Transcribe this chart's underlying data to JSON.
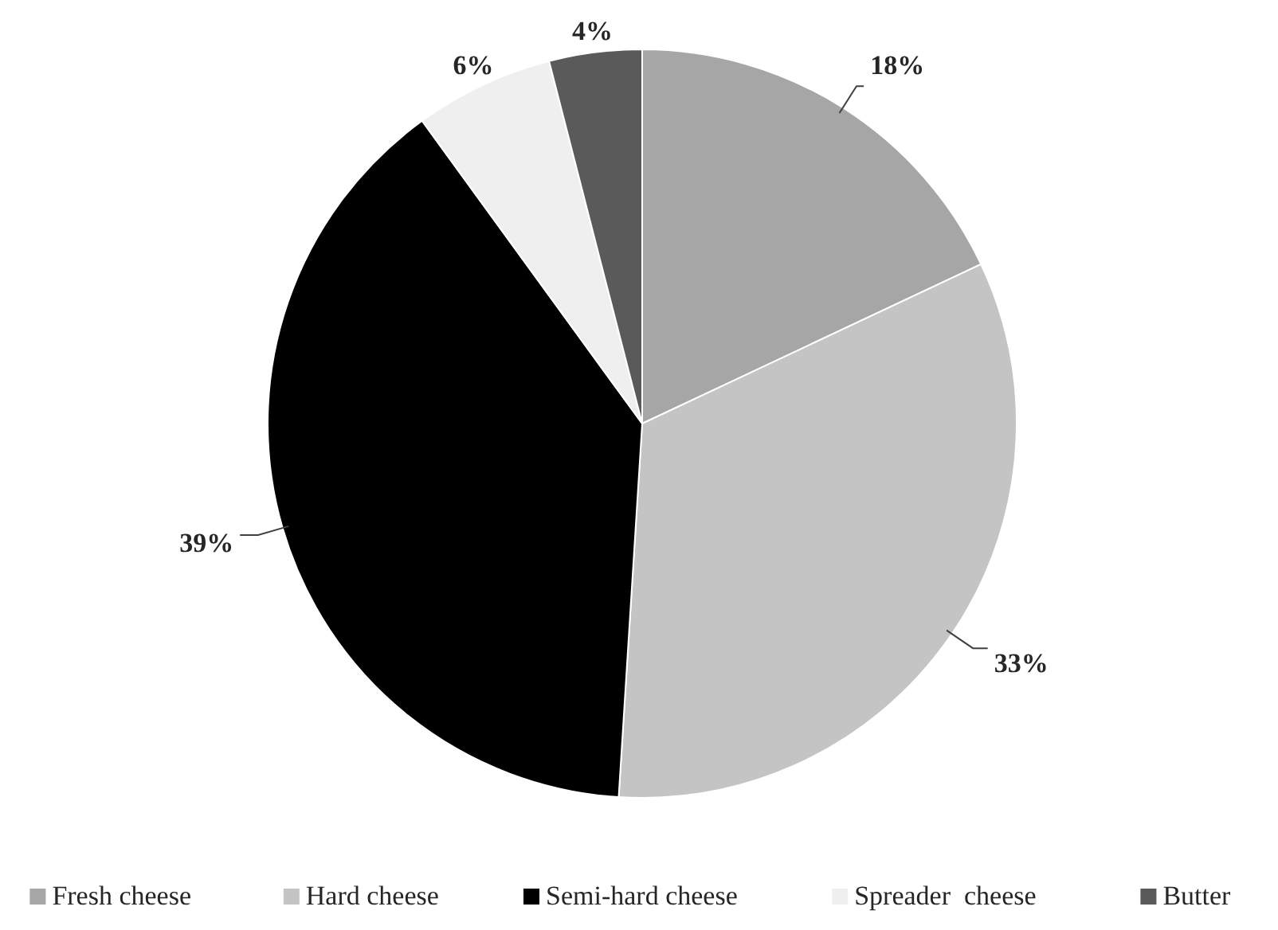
{
  "chart_data": {
    "type": "pie",
    "categories": [
      "Fresh cheese",
      "Hard cheese",
      "Semi-hard cheese",
      "Spreader  cheese",
      "Butter"
    ],
    "values": [
      18,
      33,
      39,
      6,
      4
    ],
    "colors": [
      "#a6a6a6",
      "#c4c4c4",
      "#000000",
      "#efefef",
      "#5a5a5a"
    ],
    "value_labels": [
      "18%",
      "33%",
      "39%",
      "6%",
      "4%"
    ],
    "legend": "bottom"
  }
}
